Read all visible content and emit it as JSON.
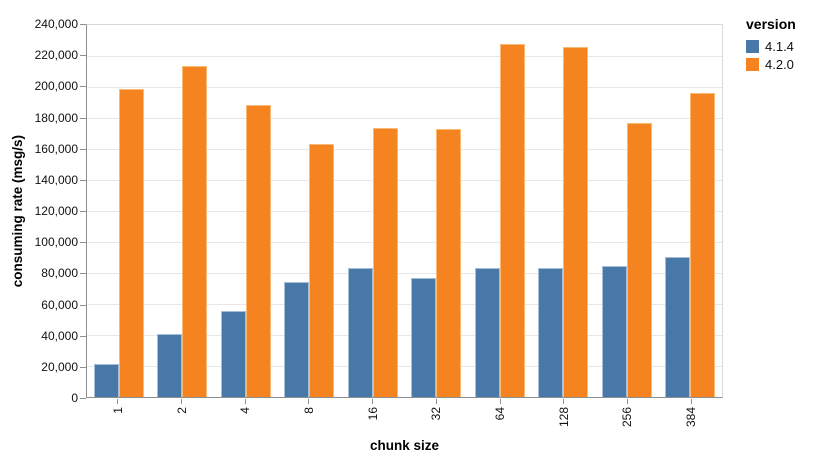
{
  "chart_data": {
    "type": "bar",
    "title": "",
    "xlabel": "chunk size",
    "ylabel": "consuming rate (msg/s)",
    "legend_title": "version",
    "legend_position": "right",
    "grid": true,
    "categories": [
      "1",
      "2",
      "4",
      "8",
      "16",
      "32",
      "64",
      "128",
      "256",
      "384"
    ],
    "series": [
      {
        "name": "4.1.4",
        "color": "#4878a8",
        "border_color": "#a6bed7",
        "values": [
          21000,
          40500,
          55500,
          74000,
          83000,
          76500,
          83500,
          83000,
          84500,
          90500
        ]
      },
      {
        "name": "4.2.0",
        "color": "#f5831f",
        "border_color": "#f9ba78",
        "values": [
          199000,
          213500,
          188500,
          163500,
          173500,
          173000,
          228000,
          225500,
          176500,
          196000
        ]
      }
    ],
    "ylim": [
      0,
      240000
    ],
    "ytick_step": 20000,
    "ytick_labels": [
      "0",
      "20,000",
      "40,000",
      "60,000",
      "80,000",
      "100,000",
      "120,000",
      "140,000",
      "160,000",
      "180,000",
      "200,000",
      "220,000",
      "240,000"
    ],
    "colors": {
      "grid": "#e7e7e7",
      "axis": "#8f8f8f",
      "plot_border": "#d9d9d9",
      "text": "#111111"
    }
  }
}
